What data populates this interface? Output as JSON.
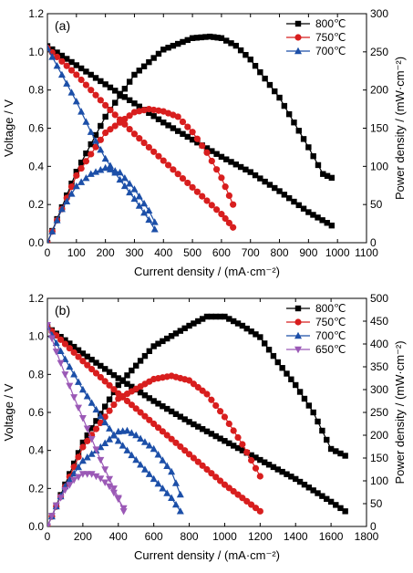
{
  "chart_data": [
    {
      "type": "line",
      "panel_label": "(a)",
      "xlabel": "Current density / (mA·cm⁻²)",
      "ylabel": "Voltage / V",
      "y2label": "Power density / (mW·cm⁻²)",
      "xlim": [
        0,
        1100
      ],
      "ylim": [
        0,
        1.2
      ],
      "y2lim": [
        0,
        300
      ],
      "xticks": [
        "0",
        "100",
        "200",
        "300",
        "400",
        "500",
        "600",
        "700",
        "800",
        "900",
        "1000",
        "1100"
      ],
      "yticks": [
        "0.0",
        "0.2",
        "0.4",
        "0.6",
        "0.8",
        "1.0",
        "1.2"
      ],
      "y2ticks": [
        "0",
        "50",
        "100",
        "150",
        "200",
        "250",
        "300"
      ],
      "legend_position": "top-right",
      "series": [
        {
          "name": "800℃",
          "color": "#000000",
          "marker": "square",
          "voltage": {
            "x": [
              0,
              100,
              200,
              300,
              400,
              500,
              600,
              700,
              800,
              900,
              980
            ],
            "y": [
              1.03,
              0.93,
              0.83,
              0.73,
              0.63,
              0.54,
              0.45,
              0.37,
              0.27,
              0.16,
              0.09
            ]
          },
          "power": {
            "x": [
              0,
              100,
              200,
              300,
              400,
              500,
              560,
              600,
              650,
              700,
              800,
              900,
              950,
              980
            ],
            "y": [
              0,
              93,
              165,
              220,
              253,
              268,
              270,
              268,
              258,
              240,
              190,
              125,
              90,
              85
            ]
          }
        },
        {
          "name": "750℃",
          "color": "#d81e1e",
          "marker": "circle",
          "voltage": {
            "x": [
              0,
              100,
              200,
              300,
              400,
              500,
              600,
              640
            ],
            "y": [
              1.02,
              0.88,
              0.72,
              0.57,
              0.43,
              0.29,
              0.15,
              0.08
            ]
          },
          "power": {
            "x": [
              0,
              100,
              200,
              300,
              350,
              400,
              450,
              500,
              550,
              600,
              640
            ],
            "y": [
              0,
              88,
              144,
              171,
              175,
              172,
              165,
              145,
              118,
              85,
              50
            ]
          }
        },
        {
          "name": "700℃",
          "color": "#1c4fa8",
          "marker": "triangle-up",
          "voltage": {
            "x": [
              0,
              50,
              100,
              150,
              200,
              250,
              300,
              350,
              370
            ],
            "y": [
              1.02,
              0.88,
              0.74,
              0.58,
              0.44,
              0.33,
              0.23,
              0.12,
              0.07
            ]
          },
          "power": {
            "x": [
              0,
              50,
              100,
              150,
              200,
              250,
              300,
              350,
              370
            ],
            "y": [
              0,
              44,
              74,
              90,
              98,
              92,
              70,
              42,
              27
            ]
          }
        }
      ]
    },
    {
      "type": "line",
      "panel_label": "(b)",
      "xlabel": "Current density / (mA·cm⁻²)",
      "ylabel": "Voltage / V",
      "y2label": "Power density / (mW·cm⁻²)",
      "xlim": [
        0,
        1800
      ],
      "ylim": [
        0,
        1.2
      ],
      "y2lim": [
        0,
        500
      ],
      "xticks": [
        "0",
        "200",
        "400",
        "600",
        "800",
        "1000",
        "1200",
        "1400",
        "1600",
        "1800"
      ],
      "yticks": [
        "0.0",
        "0.2",
        "0.4",
        "0.6",
        "0.8",
        "1.0",
        "1.2"
      ],
      "y2ticks": [
        "0",
        "50",
        "100",
        "150",
        "200",
        "250",
        "300",
        "350",
        "400",
        "450",
        "500"
      ],
      "legend_position": "top-right",
      "series": [
        {
          "name": "800℃",
          "color": "#000000",
          "marker": "square",
          "voltage": {
            "x": [
              0,
              200,
              400,
              600,
              800,
              1000,
              1200,
              1400,
              1600,
              1680
            ],
            "y": [
              1.05,
              0.91,
              0.78,
              0.66,
              0.55,
              0.45,
              0.35,
              0.25,
              0.13,
              0.08
            ]
          },
          "power": {
            "x": [
              0,
              200,
              400,
              600,
              800,
              900,
              1000,
              1100,
              1200,
              1300,
              1400,
              1500,
              1600,
              1680
            ],
            "y": [
              0,
              184,
              310,
              395,
              440,
              460,
              460,
              440,
              415,
              360,
              310,
              250,
              170,
              155
            ]
          }
        },
        {
          "name": "750℃",
          "color": "#d81e1e",
          "marker": "circle",
          "voltage": {
            "x": [
              0,
              200,
              400,
              600,
              800,
              1000,
              1200
            ],
            "y": [
              1.05,
              0.87,
              0.7,
              0.54,
              0.38,
              0.22,
              0.08
            ]
          },
          "power": {
            "x": [
              0,
              200,
              400,
              600,
              700,
              800,
              900,
              1000,
              1100,
              1200
            ],
            "y": [
              0,
              174,
              280,
              323,
              330,
              320,
              290,
              240,
              180,
              110
            ]
          }
        },
        {
          "name": "700℃",
          "color": "#1c4fa8",
          "marker": "triangle-up",
          "voltage": {
            "x": [
              0,
              100,
              200,
              300,
              400,
              500,
              600,
              700,
              750
            ],
            "y": [
              1.05,
              0.88,
              0.72,
              0.58,
              0.45,
              0.35,
              0.25,
              0.15,
              0.08
            ]
          },
          "power": {
            "x": [
              0,
              100,
              200,
              300,
              400,
              450,
              500,
              600,
              700,
              750
            ],
            "y": [
              0,
              88,
              144,
              174,
              208,
              210,
              200,
              170,
              120,
              70
            ]
          }
        },
        {
          "name": "650℃",
          "color": "#9b59b6",
          "marker": "triangle-down",
          "voltage": {
            "x": [
              0,
              50,
              100,
              150,
              200,
              250,
              300,
              350,
              400,
              430
            ],
            "y": [
              1.06,
              0.92,
              0.8,
              0.68,
              0.57,
              0.46,
              0.35,
              0.25,
              0.15,
              0.08
            ]
          },
          "power": {
            "x": [
              0,
              50,
              100,
              150,
              200,
              250,
              300,
              350,
              400,
              430
            ],
            "y": [
              0,
              46,
              80,
              102,
              115,
              115,
              105,
              88,
              60,
              40
            ]
          }
        }
      ]
    }
  ]
}
